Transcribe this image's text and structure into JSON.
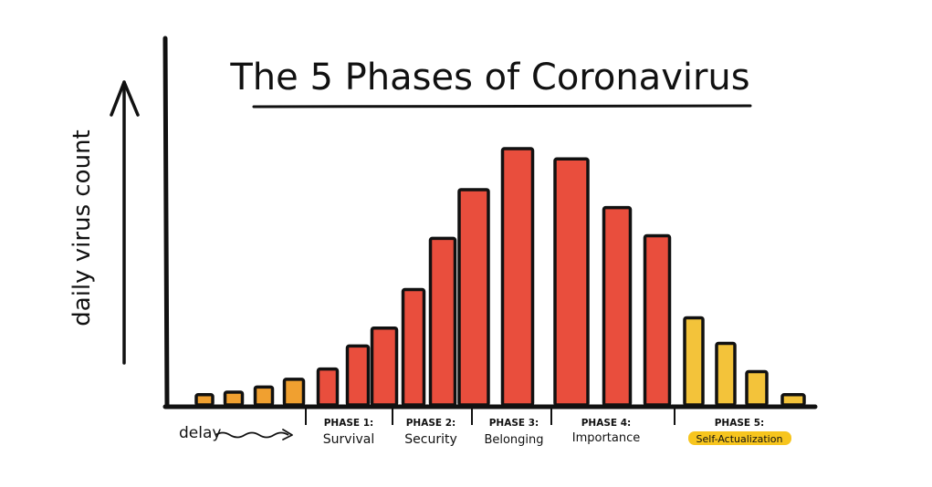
{
  "chart_data": {
    "type": "bar",
    "title": "The 5 Phases of Coronavirus",
    "ylabel": "daily virus count",
    "xlabel": "",
    "ylim": [
      0,
      100
    ],
    "values": [
      4,
      5,
      7,
      10,
      14,
      23,
      30,
      45,
      65,
      84,
      100,
      96,
      77,
      66,
      34,
      24,
      13,
      4
    ],
    "phase_of_bar": [
      0,
      0,
      0,
      0,
      1,
      1,
      1,
      2,
      2,
      3,
      3,
      4,
      4,
      4,
      5,
      5,
      5,
      5
    ],
    "colors": {
      "delay": "#f0a030",
      "active": "#e94e3d",
      "recovery": "#f3c33a",
      "highlight": "#f7c51e",
      "ink": "#111111"
    },
    "delay_label": "delay",
    "phases": [
      {
        "number": "PHASE 1:",
        "name": "Survival"
      },
      {
        "number": "PHASE 2:",
        "name": "Security"
      },
      {
        "number": "PHASE 3:",
        "name": "Belonging"
      },
      {
        "number": "PHASE 4:",
        "name": "Importance"
      },
      {
        "number": "PHASE 5:",
        "name": "Self-Actualization",
        "highlighted": true
      }
    ]
  }
}
